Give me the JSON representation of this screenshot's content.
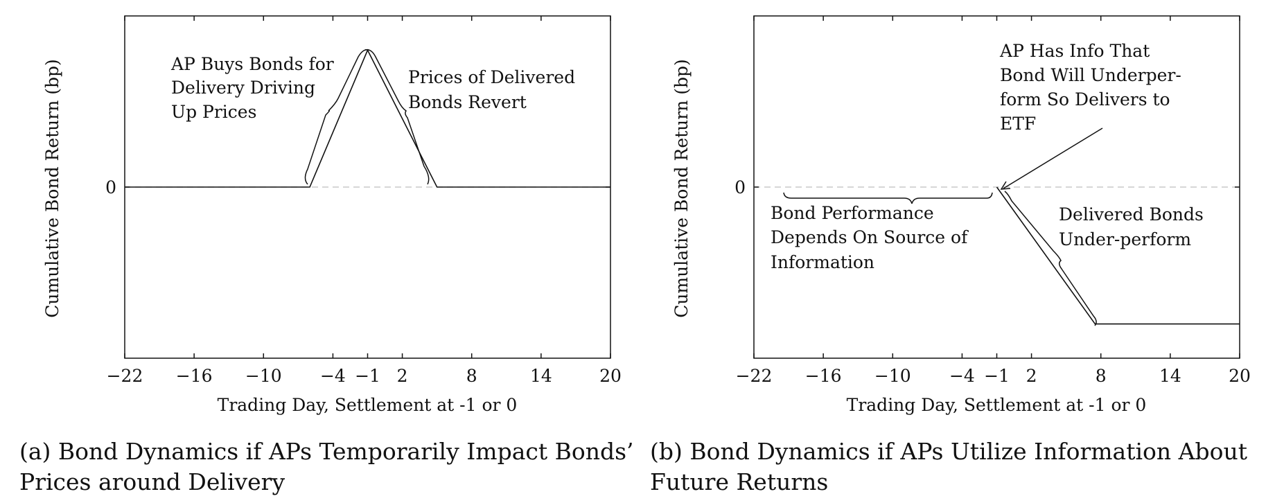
{
  "chart_data": [
    {
      "type": "line",
      "title": "",
      "xlabel": "Trading Day, Settlement at -1 or 0",
      "ylabel": "Cumulative Bond Return (bp)",
      "x_ticks": [
        -22,
        -16,
        -10,
        -4,
        -1,
        2,
        8,
        14,
        20
      ],
      "y_ticks": [
        0
      ],
      "xlim": [
        -22,
        20
      ],
      "ylim": [
        -1,
        1
      ],
      "zero_reference_line": "dashed",
      "grid": false,
      "series": [
        {
          "x": [
            -22,
            -6,
            -1,
            5,
            20
          ],
          "y": [
            0,
            0,
            0.8,
            0,
            0
          ]
        }
      ],
      "annotations": [
        {
          "lines": [
            "AP Buys Bonds for",
            "Delivery Driving",
            "Up Prices"
          ]
        },
        {
          "lines": [
            "Prices of Delivered",
            "Bonds Revert"
          ]
        }
      ],
      "caption": {
        "line1": "(a) Bond Dynamics if APs Temporarily Impact Bonds’",
        "line2": "Prices around Delivery"
      }
    },
    {
      "type": "line",
      "title": "",
      "xlabel": "Trading Day, Settlement at -1 or 0",
      "ylabel": "Cumulative Bond Return (bp)",
      "x_ticks": [
        -22,
        -16,
        -10,
        -4,
        -1,
        2,
        8,
        14,
        20
      ],
      "y_ticks": [
        0
      ],
      "xlim": [
        -22,
        20
      ],
      "ylim": [
        -1,
        1
      ],
      "zero_reference_line": "dashed",
      "grid": false,
      "series": [
        {
          "x": [
            -22,
            -1,
            7.5,
            20
          ],
          "y": [
            null,
            0,
            -0.8,
            -0.8
          ]
        }
      ],
      "annotations": [
        {
          "lines": [
            "AP Has Info That",
            "Bond Will Underper-",
            "form So Delivers to",
            "ETF"
          ]
        },
        {
          "lines": [
            "Bond Performance",
            "Depends On Source of",
            "Information"
          ]
        },
        {
          "lines": [
            "Delivered Bonds",
            "Under-perform"
          ]
        }
      ],
      "caption": {
        "line1": "(b) Bond Dynamics if APs Utilize Information About",
        "line2": "Future Returns"
      }
    }
  ]
}
